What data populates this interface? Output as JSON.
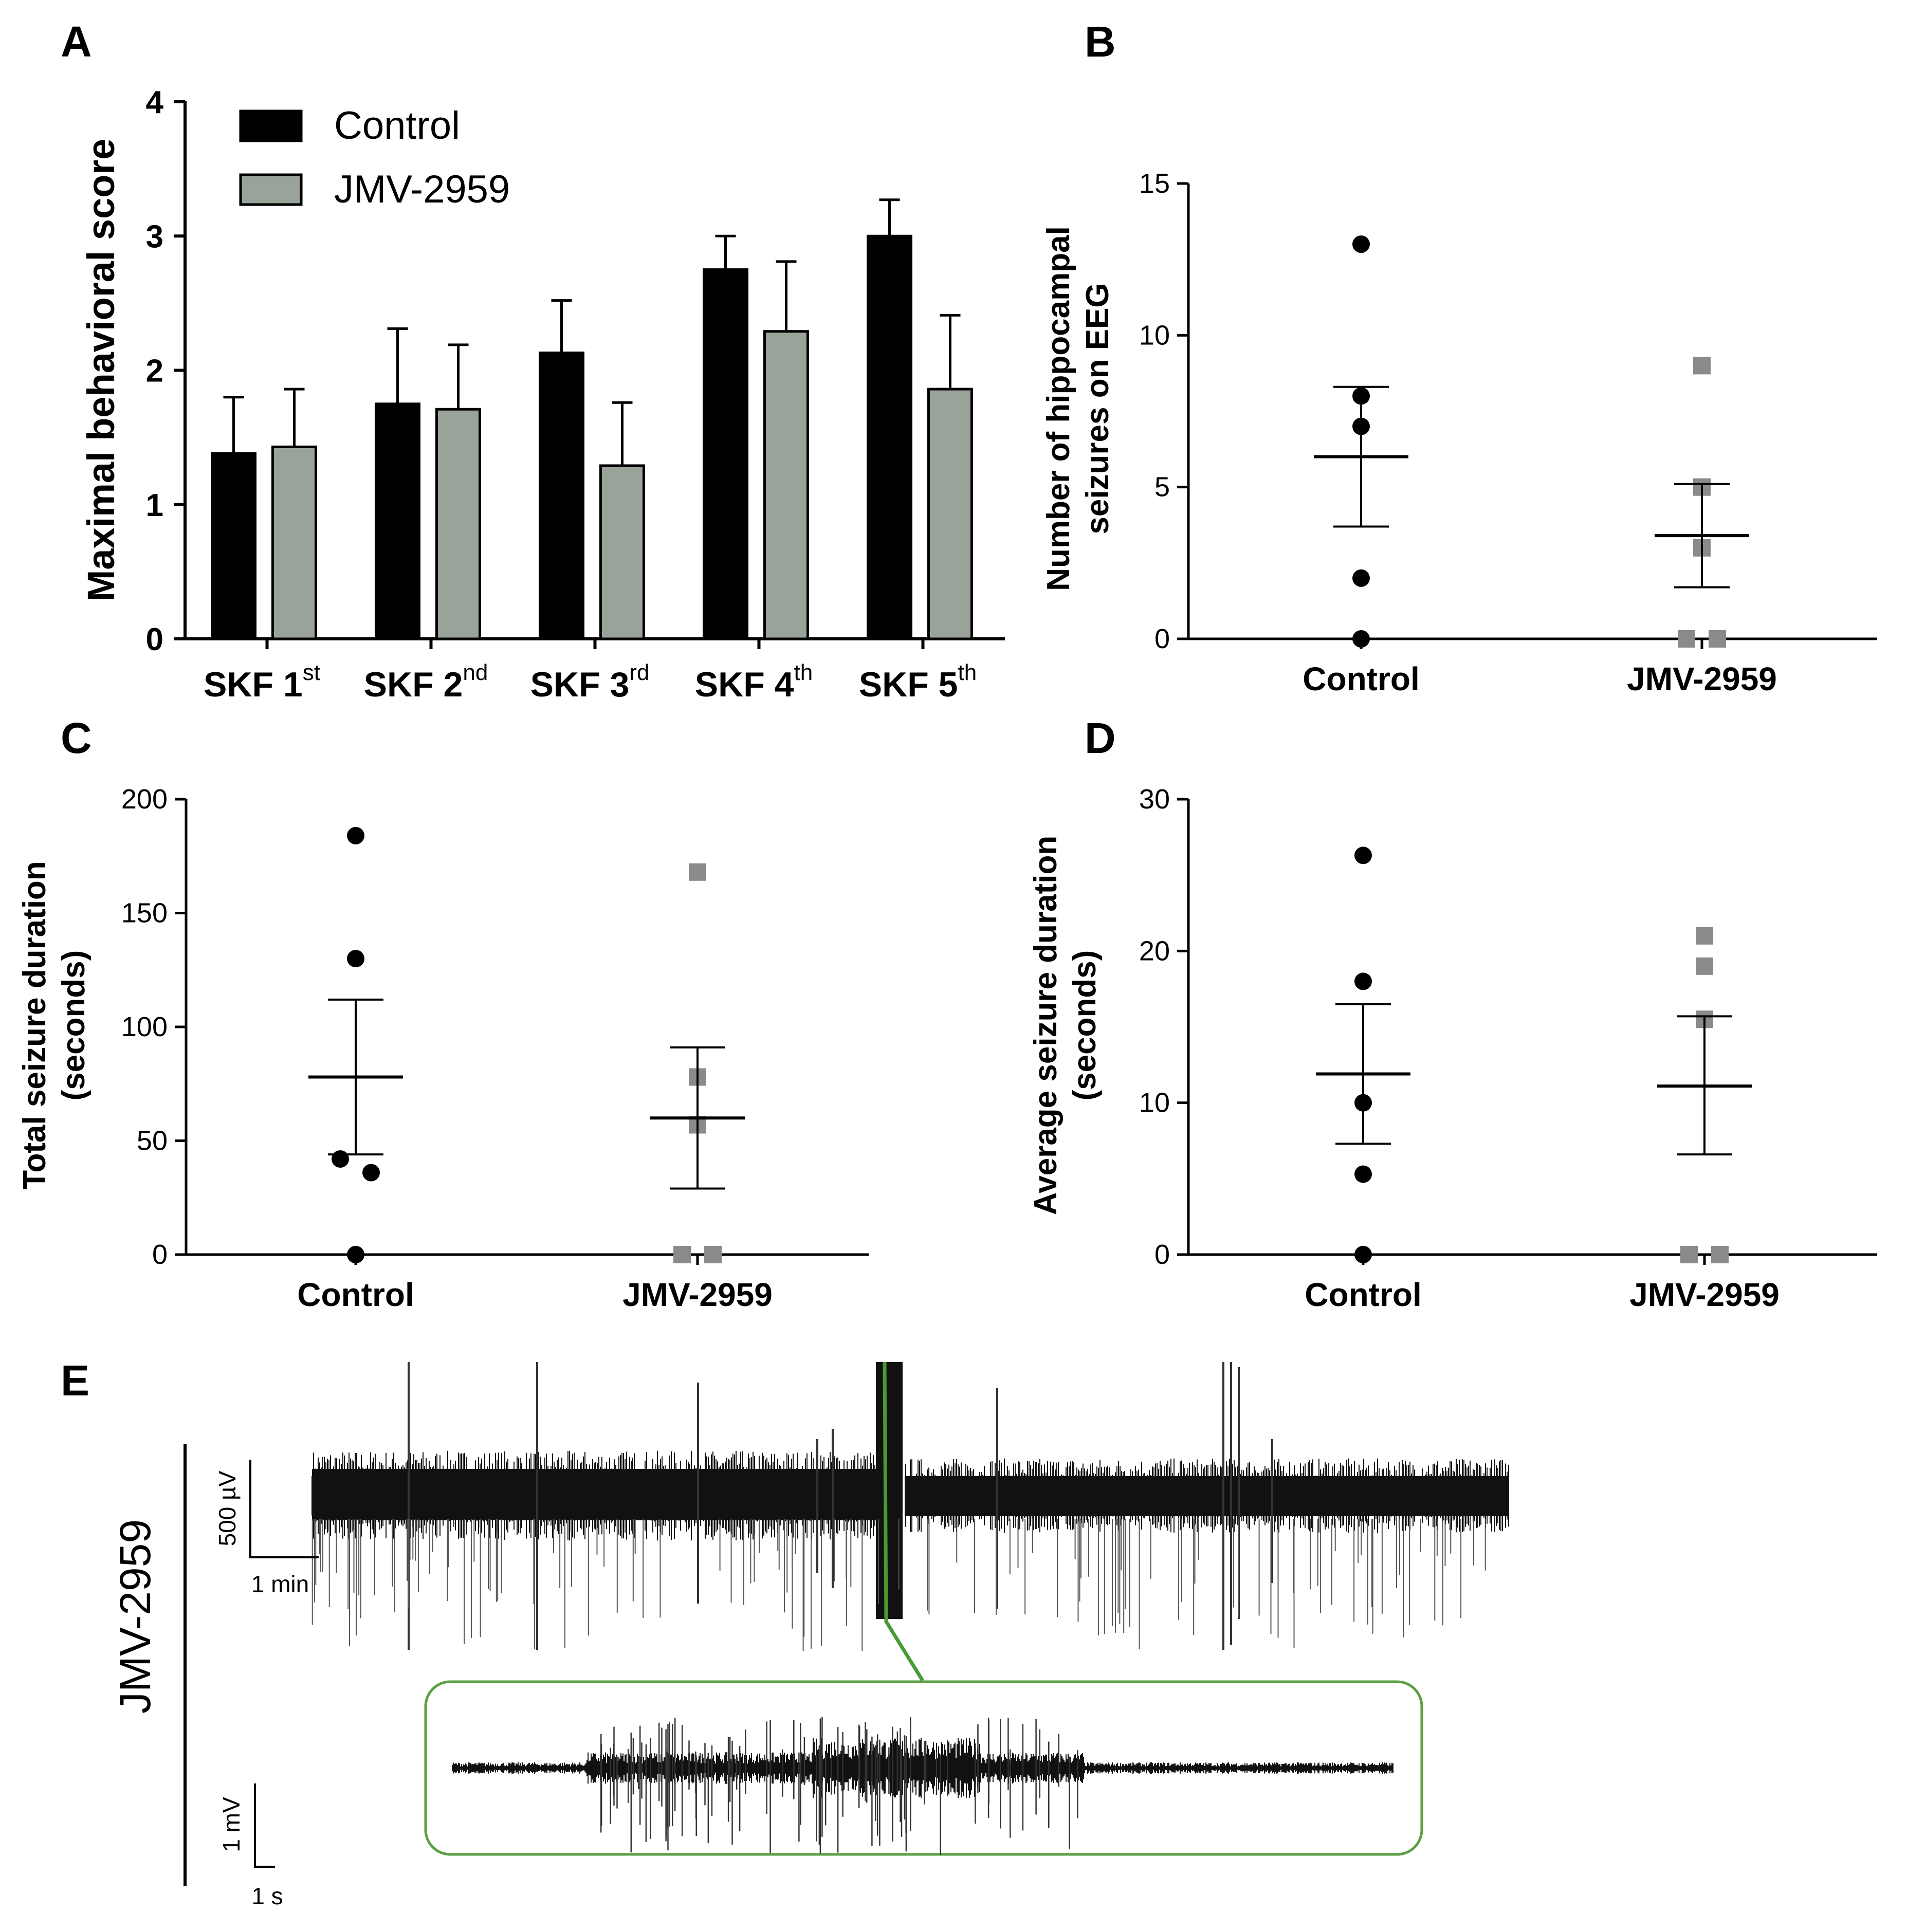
{
  "colors": {
    "control": "#000000",
    "jmv": "#99a39a",
    "jmv_marker": "#8a8a8a",
    "zoom_box": "#5aa040",
    "trace": "#111111"
  },
  "chart_data": [
    {
      "panel": "A",
      "type": "bar",
      "title": "",
      "xlabel": "",
      "ylabel": "Maximal behavioral score",
      "ylim": [
        0,
        4
      ],
      "yticks": [
        "0",
        "1",
        "2",
        "3",
        "4"
      ],
      "categories": [
        {
          "base": "SKF 1",
          "sup": "st"
        },
        {
          "base": "SKF 2",
          "sup": "nd"
        },
        {
          "base": "SKF 3",
          "sup": "rd"
        },
        {
          "base": "SKF 4",
          "sup": "th"
        },
        {
          "base": "SKF 5",
          "sup": "th"
        }
      ],
      "legend": {
        "position": "top-left",
        "entries": [
          "Control",
          "JMV-2959"
        ]
      },
      "series": [
        {
          "name": "Control",
          "values": [
            1.38,
            1.75,
            2.13,
            2.75,
            3.0
          ],
          "errors": [
            0.42,
            0.56,
            0.39,
            0.25,
            0.27
          ]
        },
        {
          "name": "JMV-2959",
          "values": [
            1.43,
            1.71,
            1.29,
            2.29,
            1.86
          ],
          "errors": [
            0.43,
            0.48,
            0.47,
            0.52,
            0.55
          ]
        }
      ]
    },
    {
      "panel": "B",
      "type": "scatter",
      "ylabel_lines": [
        "Number of hippocampal",
        "seizures on EEG"
      ],
      "ylim": [
        0,
        15
      ],
      "yticks": [
        "0",
        "5",
        "10",
        "15"
      ],
      "categories": [
        "Control",
        "JMV-2959"
      ],
      "groups": [
        {
          "name": "Control",
          "points": [
            13,
            8,
            7,
            2,
            0
          ],
          "offsets": [
            0,
            0,
            0,
            0,
            0
          ],
          "mean": 6.0,
          "sem_low": 3.7,
          "sem_high": 8.3
        },
        {
          "name": "JMV-2959",
          "points": [
            9,
            5,
            3,
            0,
            0
          ],
          "offsets": [
            0,
            0,
            0,
            -1,
            1
          ],
          "mean": 3.4,
          "sem_low": 1.7,
          "sem_high": 5.1
        }
      ]
    },
    {
      "panel": "C",
      "type": "scatter",
      "ylabel_lines": [
        "Total seizure duration",
        "(seconds)"
      ],
      "ylim": [
        0,
        200
      ],
      "yticks": [
        "0",
        "50",
        "100",
        "150",
        "200"
      ],
      "categories": [
        "Control",
        "JMV-2959"
      ],
      "groups": [
        {
          "name": "Control",
          "points": [
            184,
            130,
            42,
            36,
            0
          ],
          "offsets": [
            0,
            0,
            -1,
            1,
            0
          ],
          "mean": 78,
          "sem_low": 44,
          "sem_high": 112
        },
        {
          "name": "JMV-2959",
          "points": [
            168,
            78,
            57,
            0,
            0
          ],
          "offsets": [
            0,
            0,
            0,
            -1,
            1
          ],
          "mean": 60,
          "sem_low": 29,
          "sem_high": 91
        }
      ]
    },
    {
      "panel": "D",
      "type": "scatter",
      "ylabel_lines": [
        "Average seizure duration",
        "(seconds)"
      ],
      "ylim": [
        0,
        30
      ],
      "yticks": [
        "0",
        "10",
        "20",
        "30"
      ],
      "categories": [
        "Control",
        "JMV-2959"
      ],
      "groups": [
        {
          "name": "Control",
          "points": [
            26.3,
            18.0,
            10.0,
            5.3,
            0
          ],
          "offsets": [
            0,
            0,
            0,
            0,
            0
          ],
          "mean": 11.9,
          "sem_low": 7.3,
          "sem_high": 16.5
        },
        {
          "name": "JMV-2959",
          "points": [
            21.0,
            19.0,
            15.5,
            0,
            0
          ],
          "offsets": [
            0,
            0,
            0,
            -1,
            1
          ],
          "mean": 11.1,
          "sem_low": 6.6,
          "sem_high": 15.7
        }
      ]
    }
  ],
  "panel_labels": {
    "a": "A",
    "b": "B",
    "c": "C",
    "d": "D",
    "e": "E"
  },
  "panel_e": {
    "side_label": "JMV-2959",
    "scale_top": {
      "vertical": "500 µV",
      "horizontal": "1 min"
    },
    "scale_bottom": {
      "vertical": "1 mV",
      "horizontal": "1 s"
    }
  }
}
